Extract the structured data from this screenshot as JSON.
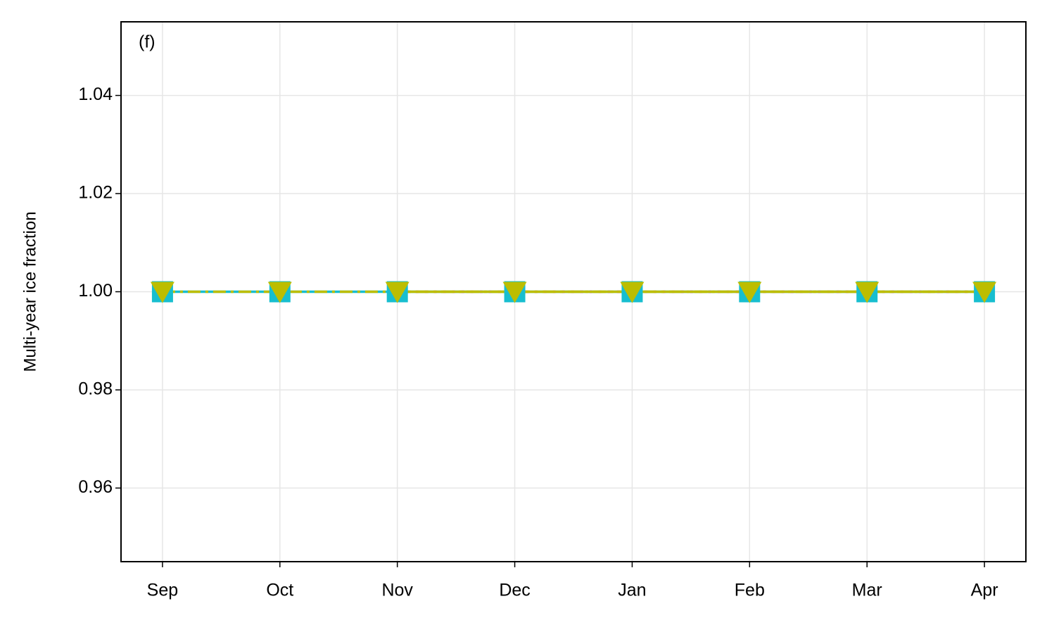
{
  "chart_data": {
    "type": "line",
    "annotation": "(f)",
    "y_label": "Multi-year ice fraction",
    "categories": [
      "Sep",
      "Oct",
      "Nov",
      "Dec",
      "Jan",
      "Feb",
      "Mar",
      "Apr"
    ],
    "series": [
      {
        "color": "#17becf",
        "linestyle": "solid",
        "marker": "square",
        "values": [
          1,
          1,
          1,
          1,
          1,
          1,
          1,
          1
        ]
      },
      {
        "color": "#c000c0",
        "linestyle": "dotted",
        "marker": "none",
        "values": [
          null,
          null,
          1,
          1,
          1,
          1,
          1,
          1
        ]
      },
      {
        "color": "#bcbd00",
        "linestyle": "solid",
        "marker": "none",
        "values": [
          null,
          null,
          1,
          1,
          1,
          1,
          1,
          1
        ]
      },
      {
        "color": "#bcbd00",
        "linestyle": "dashdot",
        "marker": "triangle-down",
        "values": [
          1,
          1,
          1,
          1,
          1,
          1,
          1,
          1
        ]
      }
    ],
    "ylim": [
      0.945,
      1.055
    ],
    "yticks": [
      0.96,
      0.98,
      {
        "value": 1,
        "label": "1.00"
      },
      1.02,
      1.04
    ],
    "grid": true
  }
}
